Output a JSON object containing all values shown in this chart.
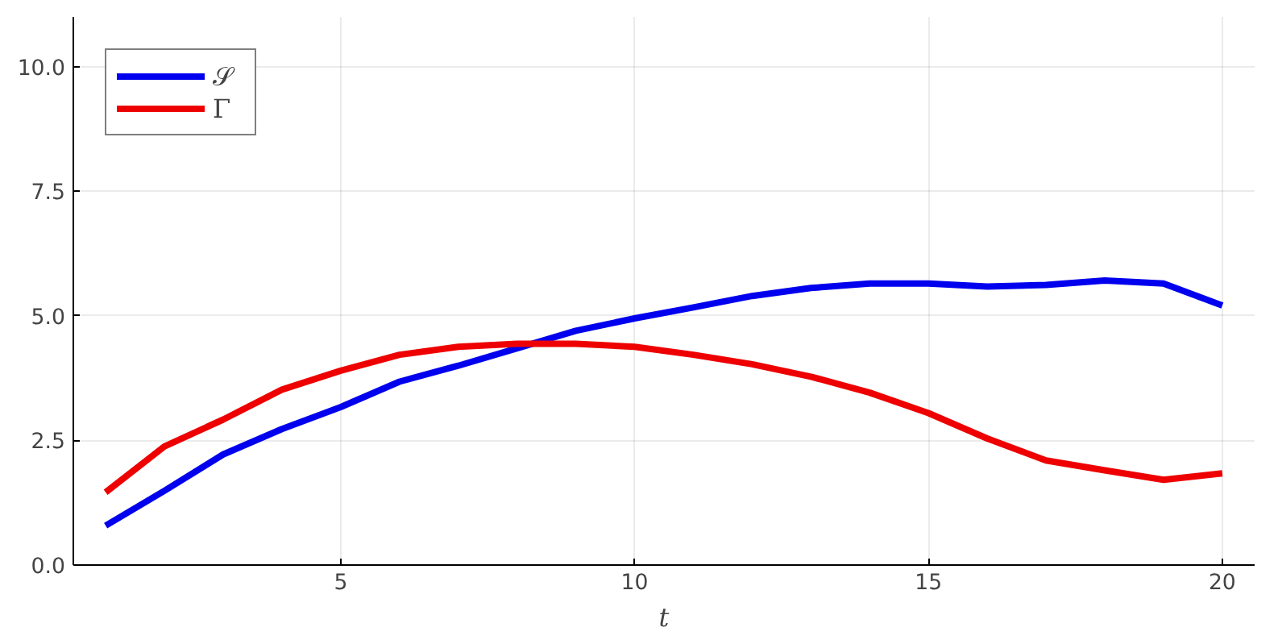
{
  "chart_data": {
    "type": "line",
    "xlabel": "t",
    "x": [
      1,
      2,
      3,
      4,
      5,
      6,
      7,
      8,
      9,
      10,
      11,
      12,
      13,
      14,
      15,
      16,
      17,
      18,
      19,
      20
    ],
    "series": [
      {
        "name": "𝒮",
        "color": "#0000ee",
        "values": [
          0.79,
          1.49,
          2.22,
          2.73,
          3.17,
          3.68,
          4.0,
          4.35,
          4.7,
          4.95,
          5.17,
          5.4,
          5.56,
          5.65,
          5.65,
          5.59,
          5.62,
          5.71,
          5.65,
          5.21
        ]
      },
      {
        "name": "Γ",
        "color": "#ee0000",
        "values": [
          1.46,
          2.38,
          2.92,
          3.52,
          3.9,
          4.22,
          4.38,
          4.44,
          4.44,
          4.38,
          4.22,
          4.03,
          3.78,
          3.46,
          3.05,
          2.54,
          2.1,
          1.9,
          1.71,
          1.84
        ]
      }
    ],
    "xlim": [
      0.45,
      20.55
    ],
    "ylim": [
      0,
      11
    ],
    "xticks": [
      5,
      10,
      15,
      20
    ],
    "yticks": [
      {
        "value": 0,
        "label": "0.0"
      },
      {
        "value": 2.5,
        "label": "2.5"
      },
      {
        "value": 5,
        "label": "5.0"
      },
      {
        "value": 7.5,
        "label": "7.5"
      },
      {
        "value": 10,
        "label": "10.0"
      }
    ],
    "grid": true,
    "legend": "top left",
    "line_style": "solid",
    "marker": "none"
  }
}
